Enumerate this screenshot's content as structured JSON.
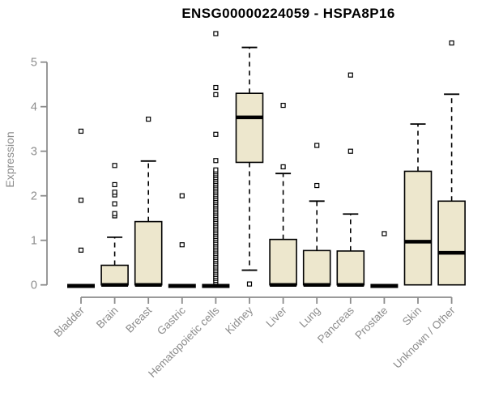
{
  "title": "ENSG00000224059 - HSPA8P16",
  "colors": {
    "box_fill": "#EDE7CD",
    "box_stroke": "#000000",
    "median": "#000000",
    "axis": "#8C8C8C",
    "tick_label": "#8C8C8C",
    "title": "#000000",
    "background": "#ffffff"
  },
  "chart_data": {
    "type": "boxplot",
    "title": "ENSG00000224059 - HSPA8P16",
    "xlabel": "",
    "ylabel": "Expression",
    "ylim": [
      0,
      5.7
    ],
    "yticks": [
      0,
      1,
      2,
      3,
      4,
      5
    ],
    "grid": false,
    "legend": "none",
    "categories": [
      "Bladder",
      "Brain",
      "Breast",
      "Gastric",
      "Hematopoietic cells",
      "Kidney",
      "Liver",
      "Lung",
      "Pancreas",
      "Prostate",
      "Skin",
      "Unknown / Other"
    ],
    "series": [
      {
        "category": "Bladder",
        "q1": 0,
        "median": 0,
        "q3": 0,
        "whisker_low": 0,
        "whisker_high": 0,
        "outliers": [
          0.78,
          1.9,
          3.45
        ]
      },
      {
        "category": "Brain",
        "q1": 0,
        "median": 0,
        "q3": 0.44,
        "whisker_low": 0,
        "whisker_high": 1.07,
        "outliers": [
          1.55,
          1.6,
          1.82,
          2.02,
          2.08,
          2.25,
          2.68
        ]
      },
      {
        "category": "Breast",
        "q1": 0,
        "median": 0,
        "q3": 1.42,
        "whisker_low": 0,
        "whisker_high": 2.78,
        "outliers": [
          3.72
        ]
      },
      {
        "category": "Gastric",
        "q1": 0,
        "median": 0,
        "q3": 0,
        "whisker_low": 0,
        "whisker_high": 0,
        "outliers": [
          0.9,
          2.0
        ]
      },
      {
        "category": "Hematopoietic cells",
        "q1": 0,
        "median": 0,
        "q3": 0,
        "whisker_low": 0,
        "whisker_high": 0,
        "outliers": [
          2.79,
          3.38,
          4.27,
          4.43,
          5.64
        ],
        "outlier_band": {
          "min": 0.06,
          "max": 2.58,
          "count": 60
        }
      },
      {
        "category": "Kidney",
        "q1": 2.75,
        "median": 3.76,
        "q3": 4.3,
        "whisker_low": 0.33,
        "whisker_high": 5.33,
        "outliers": [
          0.02
        ]
      },
      {
        "category": "Liver",
        "q1": 0,
        "median": 0,
        "q3": 1.02,
        "whisker_low": 0,
        "whisker_high": 2.5,
        "outliers": [
          2.65,
          4.03
        ]
      },
      {
        "category": "Lung",
        "q1": 0,
        "median": 0,
        "q3": 0.77,
        "whisker_low": 0,
        "whisker_high": 1.88,
        "outliers": [
          2.23,
          3.13
        ]
      },
      {
        "category": "Pancreas",
        "q1": 0,
        "median": 0,
        "q3": 0.76,
        "whisker_low": 0,
        "whisker_high": 1.59,
        "outliers": [
          3.0,
          4.71
        ]
      },
      {
        "category": "Prostate",
        "q1": 0,
        "median": 0,
        "q3": 0,
        "whisker_low": 0,
        "whisker_high": 0,
        "outliers": [
          1.15
        ]
      },
      {
        "category": "Skin",
        "q1": 0,
        "median": 0.97,
        "q3": 2.55,
        "whisker_low": 0,
        "whisker_high": 3.61,
        "outliers": []
      },
      {
        "category": "Unknown / Other",
        "q1": 0,
        "median": 0.72,
        "q3": 1.88,
        "whisker_low": 0,
        "whisker_high": 4.28,
        "outliers": [
          5.43
        ]
      }
    ]
  }
}
